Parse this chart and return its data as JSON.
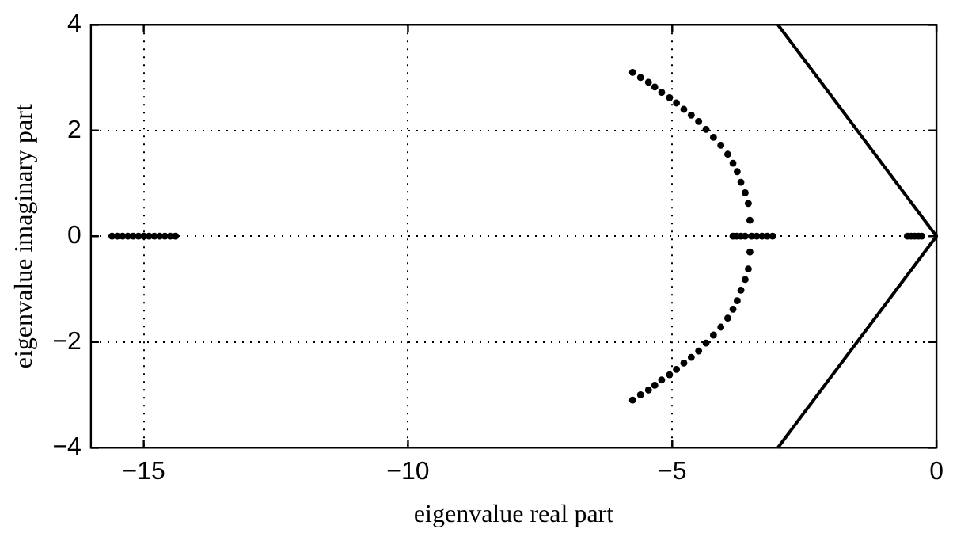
{
  "chart_data": {
    "type": "scatter",
    "xlabel": "eigenvalue real part",
    "ylabel": "eigenvalue imaginary part",
    "xlim": [
      -16,
      0
    ],
    "ylim": [
      -4,
      4
    ],
    "xticks": [
      -15,
      -10,
      -5,
      0
    ],
    "yticks": [
      -4,
      -2,
      0,
      2,
      4
    ],
    "grid": true,
    "series": [
      {
        "marker": "circle",
        "color": "#000000",
        "x": [
          -5.75,
          -5.6,
          -5.45,
          -5.33,
          -5.2,
          -5.05,
          -4.92,
          -4.78,
          -4.64,
          -4.5,
          -4.36,
          -4.22,
          -4.08,
          -3.95,
          -3.85,
          -3.77,
          -3.7,
          -3.62,
          -3.56,
          -3.53,
          -3.5,
          -3.53,
          -3.56,
          -3.62,
          -3.7,
          -3.77,
          -3.85,
          -3.95,
          -4.08,
          -4.22,
          -4.36,
          -4.5,
          -4.64,
          -4.78,
          -4.92,
          -5.05,
          -5.2,
          -5.33,
          -5.45,
          -5.6,
          -5.75
        ],
        "values": [
          3.1,
          3.0,
          2.91,
          2.82,
          2.72,
          2.62,
          2.52,
          2.4,
          2.29,
          2.17,
          2.02,
          1.87,
          1.72,
          1.55,
          1.38,
          1.22,
          1.02,
          0.82,
          0.62,
          0.3,
          0,
          -0.3,
          -0.62,
          -0.82,
          -1.02,
          -1.22,
          -1.38,
          -1.55,
          -1.72,
          -1.87,
          -2.02,
          -2.17,
          -2.29,
          -2.4,
          -2.52,
          -2.62,
          -2.72,
          -2.82,
          -2.91,
          -3.0,
          -3.1
        ]
      },
      {
        "marker": "circle",
        "color": "#000000",
        "x": [
          -15.6,
          -15.5,
          -15.4,
          -15.3,
          -15.2,
          -15.1,
          -15.0,
          -14.9,
          -14.8,
          -14.7,
          -14.6,
          -14.5,
          -14.4,
          -3.85,
          -3.78,
          -3.7,
          -3.62,
          -3.4,
          -3.3,
          -3.2,
          -3.1,
          -0.55,
          -0.48,
          -0.41,
          -0.34,
          -0.28
        ],
        "values": [
          0,
          0,
          0,
          0,
          0,
          0,
          0,
          0,
          0,
          0,
          0,
          0,
          0,
          0,
          0,
          0,
          0,
          0,
          0,
          0,
          0,
          0,
          0,
          0,
          0,
          0
        ]
      },
      {
        "type": "line",
        "marker": "none",
        "line_style": "solid",
        "color": "#000000",
        "x": [
          -3,
          0,
          -3
        ],
        "values": [
          4,
          0,
          -4
        ]
      }
    ]
  }
}
